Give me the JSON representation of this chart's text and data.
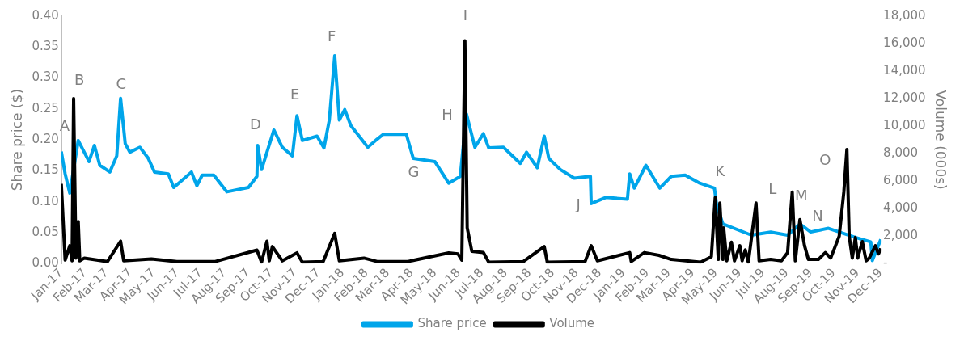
{
  "chart_data": {
    "type": "line",
    "ylabel": "Share price ($)",
    "y2label": "Volume (000s)",
    "legend": "bottom",
    "grid": false,
    "marker": "none",
    "line_style": "solid",
    "xlim": [
      "2017-01-01",
      "2019-12-01"
    ],
    "xticks": [
      {
        "value": "2017-01-01",
        "label": "Jan-17"
      },
      {
        "value": "2017-02-01",
        "label": "Feb-17"
      },
      {
        "value": "2017-03-01",
        "label": "Mar-17"
      },
      {
        "value": "2017-04-01",
        "label": "Apr-17"
      },
      {
        "value": "2017-05-01",
        "label": "May-17"
      },
      {
        "value": "2017-06-01",
        "label": "Jun-17"
      },
      {
        "value": "2017-07-01",
        "label": "Jul-17"
      },
      {
        "value": "2017-08-01",
        "label": "Aug-17"
      },
      {
        "value": "2017-09-01",
        "label": "Sep-17"
      },
      {
        "value": "2017-10-01",
        "label": "Oct-17"
      },
      {
        "value": "2017-11-01",
        "label": "Nov-17"
      },
      {
        "value": "2017-12-01",
        "label": "Dec-17"
      },
      {
        "value": "2018-01-01",
        "label": "Jan-18"
      },
      {
        "value": "2018-02-01",
        "label": "Feb-18"
      },
      {
        "value": "2018-03-01",
        "label": "Mar-18"
      },
      {
        "value": "2018-04-01",
        "label": "Apr-18"
      },
      {
        "value": "2018-05-01",
        "label": "May-18"
      },
      {
        "value": "2018-06-01",
        "label": "Jun-18"
      },
      {
        "value": "2018-07-01",
        "label": "Jul-18"
      },
      {
        "value": "2018-08-01",
        "label": "Aug-18"
      },
      {
        "value": "2018-09-01",
        "label": "Sep-18"
      },
      {
        "value": "2018-10-01",
        "label": "Oct-18"
      },
      {
        "value": "2018-11-01",
        "label": "Nov-18"
      },
      {
        "value": "2018-12-01",
        "label": "Dec-18"
      },
      {
        "value": "2019-01-01",
        "label": "Jan-19"
      },
      {
        "value": "2019-02-01",
        "label": "Feb-19"
      },
      {
        "value": "2019-03-01",
        "label": "Mar-19"
      },
      {
        "value": "2019-04-01",
        "label": "Apr-19"
      },
      {
        "value": "2019-05-01",
        "label": "May-19"
      },
      {
        "value": "2019-06-01",
        "label": "Jun-19"
      },
      {
        "value": "2019-07-01",
        "label": "Jul-19"
      },
      {
        "value": "2019-08-01",
        "label": "Aug-19"
      },
      {
        "value": "2019-09-01",
        "label": "Sep-19"
      },
      {
        "value": "2019-10-01",
        "label": "Oct-19"
      },
      {
        "value": "2019-11-01",
        "label": "Nov-19"
      },
      {
        "value": "2019-12-01",
        "label": "Dec-19"
      }
    ],
    "ylim": [
      0,
      0.4
    ],
    "yticks": [
      {
        "value": 0,
        "label": "0.00"
      },
      {
        "value": 0.05,
        "label": "0.05"
      },
      {
        "value": 0.1,
        "label": "0.10"
      },
      {
        "value": 0.15,
        "label": "0.15"
      },
      {
        "value": 0.2,
        "label": "0.20"
      },
      {
        "value": 0.25,
        "label": "0.25"
      },
      {
        "value": 0.3,
        "label": "0.30"
      },
      {
        "value": 0.35,
        "label": "0.35"
      },
      {
        "value": 0.4,
        "label": "0.40"
      }
    ],
    "y2lim": [
      0,
      18000
    ],
    "y2ticks": [
      {
        "value": 0,
        "label": "-"
      },
      {
        "value": 2000,
        "label": "2,000"
      },
      {
        "value": 4000,
        "label": "4,000"
      },
      {
        "value": 6000,
        "label": "6,000"
      },
      {
        "value": 8000,
        "label": "8,000"
      },
      {
        "value": 10000,
        "label": "10,000"
      },
      {
        "value": 12000,
        "label": "12,000"
      },
      {
        "value": 14000,
        "label": "14,000"
      },
      {
        "value": 16000,
        "label": "16,000"
      },
      {
        "value": 18000,
        "label": "18,000"
      }
    ],
    "series": [
      {
        "name": "Share price",
        "color": "#00a5ea",
        "x": [
          "2017-01-01",
          "2017-01-06",
          "2017-01-12",
          "2017-01-23",
          "2017-02-06",
          "2017-02-13",
          "2017-02-20",
          "2017-03-05",
          "2017-03-14",
          "2017-03-19",
          "2017-03-25",
          "2017-03-31",
          "2017-04-13",
          "2017-04-24",
          "2017-05-02",
          "2017-05-20",
          "2017-05-27",
          "2017-06-19",
          "2017-06-26",
          "2017-07-03",
          "2017-07-18",
          "2017-08-04",
          "2017-09-01",
          "2017-09-12",
          "2017-09-13",
          "2017-09-18",
          "2017-10-04",
          "2017-10-15",
          "2017-10-28",
          "2017-11-03",
          "2017-11-10",
          "2017-11-29",
          "2017-12-08",
          "2017-12-15",
          "2017-12-22",
          "2017-12-28",
          "2018-01-04",
          "2018-01-12",
          "2018-02-03",
          "2018-02-15",
          "2018-02-23",
          "2018-03-25",
          "2018-04-03",
          "2018-05-01",
          "2018-05-19",
          "2018-06-03",
          "2018-06-11",
          "2018-06-22",
          "2018-07-03",
          "2018-07-10",
          "2018-07-29",
          "2018-08-20",
          "2018-08-28",
          "2018-09-11",
          "2018-09-20",
          "2018-09-26",
          "2018-10-11",
          "2018-10-29",
          "2018-11-19",
          "2018-11-20",
          "2018-12-09",
          "2019-01-06",
          "2019-01-09",
          "2019-01-15",
          "2019-01-30",
          "2019-02-17",
          "2019-03-04",
          "2019-03-22",
          "2019-04-10",
          "2019-04-29",
          "2019-05-02",
          "2019-05-10",
          "2019-06-16",
          "2019-07-11",
          "2019-08-02",
          "2019-08-18",
          "2019-09-01",
          "2019-09-24",
          "2019-10-08",
          "2019-10-30",
          "2019-11-18",
          "2019-11-20",
          "2019-12-01"
        ],
        "values": [
          0.181,
          0.145,
          0.114,
          0.199,
          0.165,
          0.191,
          0.159,
          0.148,
          0.174,
          0.267,
          0.194,
          0.18,
          0.188,
          0.17,
          0.148,
          0.145,
          0.123,
          0.148,
          0.126,
          0.143,
          0.143,
          0.116,
          0.123,
          0.141,
          0.191,
          0.152,
          0.216,
          0.188,
          0.174,
          0.239,
          0.199,
          0.206,
          0.187,
          0.232,
          0.336,
          0.232,
          0.249,
          0.223,
          0.188,
          0.201,
          0.209,
          0.209,
          0.17,
          0.165,
          0.13,
          0.141,
          0.242,
          0.188,
          0.21,
          0.187,
          0.188,
          0.162,
          0.18,
          0.155,
          0.206,
          0.17,
          0.152,
          0.138,
          0.141,
          0.097,
          0.107,
          0.104,
          0.145,
          0.122,
          0.159,
          0.122,
          0.141,
          0.143,
          0.13,
          0.122,
          0.093,
          0.064,
          0.046,
          0.051,
          0.046,
          0.064,
          0.051,
          0.057,
          0.051,
          0.042,
          0.035,
          0.005,
          0.039
        ]
      },
      {
        "name": "Volume",
        "color": "#000000",
        "axis": "y2",
        "x": [
          "2017-01-01",
          "2017-01-06",
          "2017-01-12",
          "2017-01-15",
          "2017-01-17",
          "2017-01-20",
          "2017-01-23",
          "2017-01-25",
          "2017-01-31",
          "2017-03-02",
          "2017-03-19",
          "2017-03-23",
          "2017-04-28",
          "2017-05-31",
          "2017-07-20",
          "2017-09-12",
          "2017-09-18",
          "2017-09-25",
          "2017-09-28",
          "2017-10-02",
          "2017-10-15",
          "2017-11-03",
          "2017-11-10",
          "2017-12-07",
          "2017-12-22",
          "2017-12-28",
          "2018-01-29",
          "2018-02-15",
          "2018-03-27",
          "2018-05-19",
          "2018-05-31",
          "2018-06-05",
          "2018-06-09",
          "2018-06-12",
          "2018-06-18",
          "2018-07-03",
          "2018-07-10",
          "2018-08-24",
          "2018-09-20",
          "2018-09-24",
          "2018-11-12",
          "2018-11-20",
          "2018-11-28",
          "2019-01-09",
          "2019-01-11",
          "2019-01-28",
          "2019-02-16",
          "2019-03-04",
          "2019-04-11",
          "2019-04-25",
          "2019-04-30",
          "2019-05-04",
          "2019-05-06",
          "2019-05-10",
          "2019-05-11",
          "2019-05-15",
          "2019-05-21",
          "2019-05-25",
          "2019-06-01",
          "2019-06-04",
          "2019-06-08",
          "2019-06-12",
          "2019-06-22",
          "2019-06-26",
          "2019-07-11",
          "2019-07-25",
          "2019-08-02",
          "2019-08-08",
          "2019-08-12",
          "2019-08-18",
          "2019-08-24",
          "2019-08-29",
          "2019-09-11",
          "2019-09-20",
          "2019-09-27",
          "2019-10-08",
          "2019-10-14",
          "2019-10-18",
          "2019-10-21",
          "2019-10-25",
          "2019-10-29",
          "2019-11-01",
          "2019-11-07",
          "2019-11-12",
          "2019-11-16",
          "2019-11-24",
          "2019-11-28",
          "2019-12-01"
        ],
        "values": [
          5800,
          260,
          1300,
          200,
          12000,
          400,
          3060,
          200,
          400,
          150,
          1630,
          200,
          330,
          150,
          150,
          980,
          100,
          1630,
          200,
          1240,
          200,
          780,
          100,
          150,
          2200,
          200,
          400,
          150,
          150,
          780,
          700,
          250,
          16200,
          2600,
          900,
          800,
          100,
          150,
          1240,
          100,
          150,
          1300,
          200,
          800,
          150,
          800,
          600,
          300,
          100,
          500,
          4800,
          300,
          4400,
          300,
          2600,
          200,
          1560,
          200,
          1300,
          200,
          1000,
          100,
          4400,
          200,
          300,
          200,
          800,
          5200,
          200,
          3200,
          1300,
          300,
          300,
          800,
          400,
          2000,
          5200,
          8300,
          2000,
          400,
          1900,
          400,
          1600,
          200,
          400,
          1300,
          700,
          1100
        ]
      }
    ],
    "annotations": [
      "A",
      "B",
      "C",
      "D",
      "E",
      "F",
      "G",
      "H",
      "I",
      "J",
      "K",
      "L",
      "M",
      "N",
      "O"
    ]
  }
}
